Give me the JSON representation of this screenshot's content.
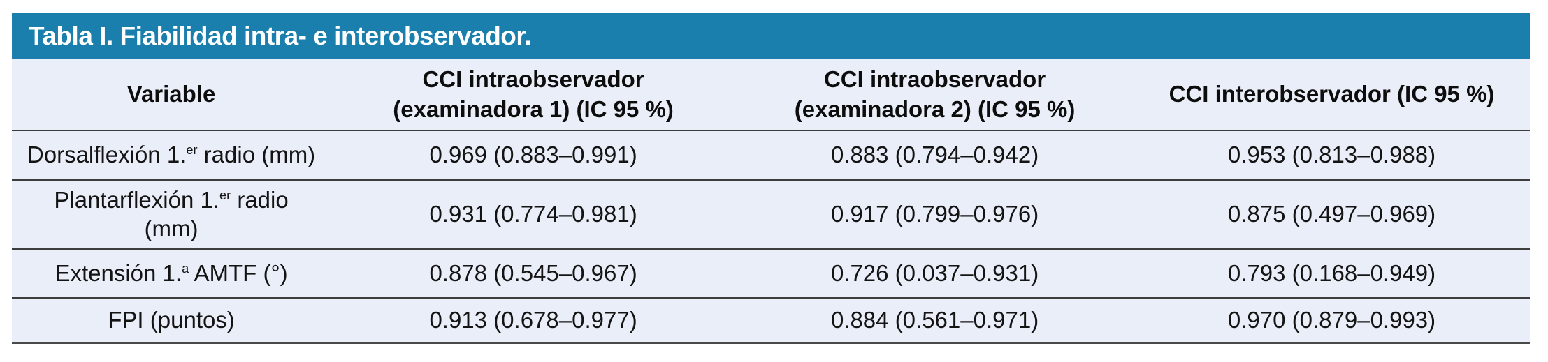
{
  "title": "Tabla I. Fiabilidad intra- e interobservador.",
  "colors": {
    "title_bar_bg": "#1a7fac",
    "title_text": "#ffffff",
    "table_bg": "#e9eef8",
    "divider_line": "#3d3d3d",
    "text": "#141414"
  },
  "table": {
    "columns": [
      {
        "line1": "Variable",
        "line2": ""
      },
      {
        "line1": "CCI intraobservador",
        "line2": "(examinadora 1) (IC 95 %)"
      },
      {
        "line1": "CCI intraobservador",
        "line2": "(examinadora 2) (IC 95 %)"
      },
      {
        "line1": "CCI interobservador (IC 95 %)",
        "line2": ""
      }
    ],
    "rows": [
      {
        "variable": {
          "pre": "Dorsalflexión 1.",
          "sup": "er",
          "post": " radio (mm)",
          "line2": ""
        },
        "values": [
          "0.969 (0.883–0.991)",
          "0.883 (0.794–0.942)",
          "0.953 (0.813–0.988)"
        ]
      },
      {
        "variable": {
          "pre": "Plantarflexión 1.",
          "sup": "er",
          "post": " radio",
          "line2": "(mm)"
        },
        "values": [
          "0.931 (0.774–0.981)",
          "0.917 (0.799–0.976)",
          "0.875 (0.497–0.969)"
        ]
      },
      {
        "variable": {
          "pre": "Extensión 1.",
          "sup": "a",
          "post": " AMTF (°)",
          "line2": ""
        },
        "values": [
          "0.878 (0.545–0.967)",
          "0.726 (0.037–0.931)",
          "0.793 (0.168–0.949)"
        ]
      },
      {
        "variable": {
          "pre": "FPI (puntos)",
          "sup": "",
          "post": "",
          "line2": ""
        },
        "values": [
          "0.913 (0.678–0.977)",
          "0.884 (0.561–0.971)",
          "0.970 (0.879–0.993)"
        ]
      }
    ]
  }
}
